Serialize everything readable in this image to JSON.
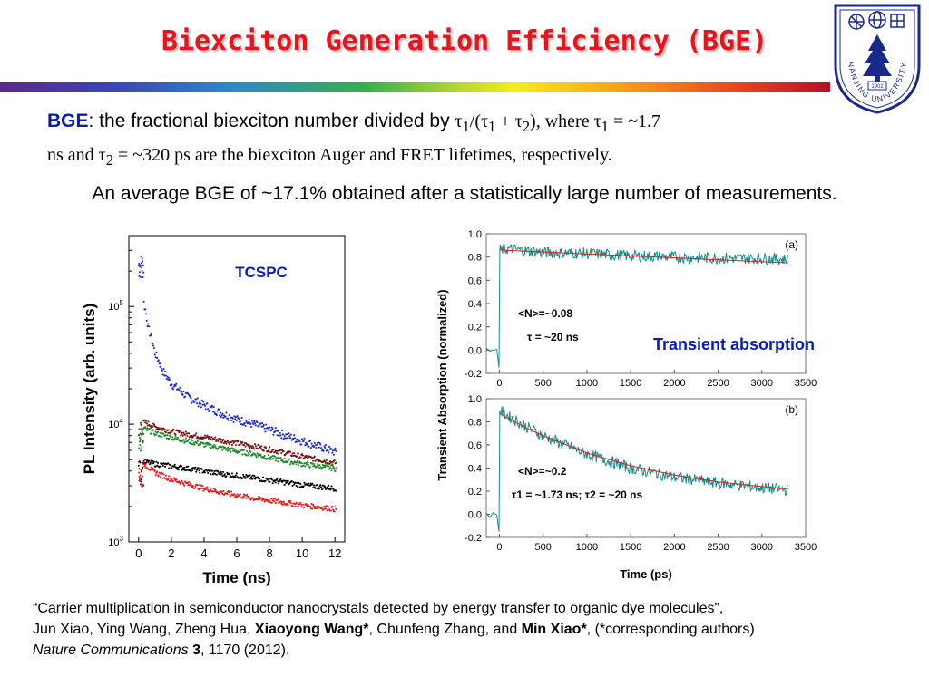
{
  "title": "Biexciton Generation Efficiency (BGE)",
  "definition": {
    "bold_term": "BGE",
    "sans_part": ": the fractional biexciton number divided by ",
    "formula_html": "τ<sub>1</sub>/(τ<sub>1</sub> + τ<sub>2</sub>)",
    "rest_html": ", where τ<sub>1</sub> = ~1.7",
    "line2_html": "ns and τ<sub>2</sub> = ~320 ps are the biexciton Auger and FRET lifetimes, respectively."
  },
  "summary": "An average BGE of ~17.1% obtained after a statistically large number of measurements.",
  "citation": {
    "line1": "“Carrier multiplication in semiconductor nanocrystals detected by energy transfer to organic dye molecules”,",
    "authors_pre": "Jun Xiao, Ying Wang, Zheng Hua, ",
    "author_bold1": "Xiaoyong Wang*",
    "authors_mid": ", Chunfeng Zhang, and ",
    "author_bold2": "Min Xiao*",
    "authors_post": ", (*corresponding authors)",
    "journal": "Nature Communications",
    "volume": "3",
    "pages_year": ", 1170 (2012)."
  },
  "logo": {
    "top_text": "NANJING UNIVERSITY",
    "year": "1902"
  },
  "colors": {
    "title": "#e8141c",
    "bge_term": "#0a1ab8",
    "annotation": "#0a1ab8",
    "logo": "#1a2a8c",
    "ta_trace": "#138a8a",
    "ta_fit": "#e02020"
  },
  "chart_data": [
    {
      "type": "scatter",
      "annotation": "TCSPC",
      "xlabel": "Time (ns)",
      "ylabel": "PL Intensity (arb. units)",
      "xlim": [
        -0.6,
        12.6
      ],
      "ylim": [
        1000,
        400000
      ],
      "yscale": "log",
      "xticks": [
        0,
        2,
        4,
        6,
        8,
        10,
        12
      ],
      "yticks": [
        {
          "value": 1000,
          "base": "10",
          "exp": "3"
        },
        {
          "value": 10000,
          "base": "10",
          "exp": "4"
        },
        {
          "value": 100000,
          "base": "10",
          "exp": "5"
        }
      ],
      "series": [
        {
          "color": "#1428e0",
          "peak": 280000,
          "x": [
            0.3,
            0.6,
            1,
            1.5,
            2,
            3,
            4,
            5,
            6,
            7,
            8,
            9,
            10,
            11,
            12
          ],
          "y": [
            110000,
            65000,
            40000,
            28000,
            22000,
            17000,
            14500,
            12500,
            11000,
            10000,
            9000,
            8000,
            7200,
            6500,
            5800
          ]
        },
        {
          "color": "#7a1010",
          "peak": 11000,
          "x": [
            0.3,
            1,
            2,
            3,
            4,
            5,
            6,
            7,
            8,
            9,
            10,
            11,
            12
          ],
          "y": [
            10500,
            9500,
            8700,
            8200,
            7800,
            7300,
            6900,
            6500,
            6100,
            5700,
            5300,
            5000,
            4700
          ]
        },
        {
          "color": "#1a8a2a",
          "peak": 9500,
          "x": [
            0.3,
            1,
            2,
            3,
            4,
            5,
            6,
            7,
            8,
            9,
            10,
            11,
            12
          ],
          "y": [
            9200,
            8400,
            7700,
            7200,
            6700,
            6300,
            5900,
            5600,
            5200,
            4900,
            4600,
            4400,
            4200
          ]
        },
        {
          "color": "#000000",
          "peak": 4900,
          "x": [
            0.3,
            1,
            2,
            3,
            4,
            5,
            6,
            7,
            8,
            9,
            10,
            11,
            12
          ],
          "y": [
            4800,
            4600,
            4400,
            4200,
            4000,
            3800,
            3650,
            3500,
            3350,
            3200,
            3050,
            2950,
            2850
          ]
        },
        {
          "color": "#e81818",
          "peak": 4800,
          "x": [
            0.3,
            1,
            2,
            3,
            4,
            5,
            6,
            7,
            8,
            9,
            10,
            11,
            12
          ],
          "y": [
            4600,
            3900,
            3400,
            3100,
            2850,
            2650,
            2500,
            2350,
            2250,
            2150,
            2050,
            1980,
            1900
          ]
        }
      ]
    },
    {
      "type": "line",
      "annotation": "Transient absorption",
      "xlabel": "Time (ps)",
      "ylabel": "Transient Absorption (normalized)",
      "panels": [
        {
          "tag": "(a)",
          "xlim": [
            -150,
            3500
          ],
          "ylim": [
            -0.2,
            1.0
          ],
          "xticks": [
            0,
            500,
            1000,
            1500,
            2000,
            2500,
            3000,
            3500
          ],
          "yticks": [
            -0.2,
            0.0,
            0.2,
            0.4,
            0.6,
            0.8,
            1.0
          ],
          "note1": "<N>=~0.08",
          "note2": "τ = ~20 ns",
          "data_x": [
            0,
            100,
            500,
            1000,
            1500,
            2000,
            2500,
            3000,
            3300
          ],
          "data_y": [
            0.86,
            0.87,
            0.84,
            0.83,
            0.81,
            0.8,
            0.79,
            0.79,
            0.78
          ],
          "fit_x": [
            0,
            3300
          ],
          "fit_y": [
            0.86,
            0.75
          ]
        },
        {
          "tag": "(b)",
          "xlim": [
            -150,
            3500
          ],
          "ylim": [
            -0.2,
            1.0
          ],
          "xticks": [
            0,
            500,
            1000,
            1500,
            2000,
            2500,
            3000,
            3500
          ],
          "yticks": [
            -0.2,
            0.0,
            0.2,
            0.4,
            0.6,
            0.8,
            1.0
          ],
          "note1": "<N>=~0.2",
          "note2": "τ1 = ~1.73 ns; τ2 = ~20 ns",
          "data_x": [
            0,
            100,
            300,
            500,
            1000,
            1500,
            2000,
            2500,
            3000,
            3300
          ],
          "data_y": [
            0.9,
            0.85,
            0.76,
            0.68,
            0.52,
            0.4,
            0.32,
            0.27,
            0.23,
            0.21
          ],
          "fit_x": [
            0,
            100,
            300,
            500,
            1000,
            1500,
            2000,
            2500,
            3000,
            3300
          ],
          "fit_y": [
            0.87,
            0.83,
            0.75,
            0.68,
            0.53,
            0.42,
            0.34,
            0.28,
            0.24,
            0.22
          ]
        }
      ]
    }
  ]
}
